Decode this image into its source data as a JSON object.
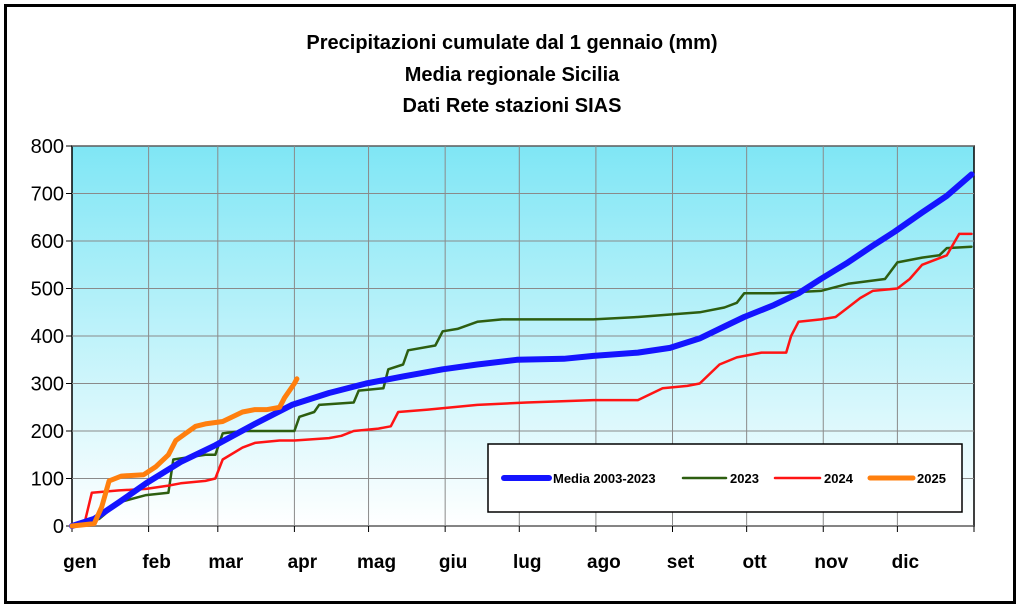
{
  "chart_data": {
    "type": "line",
    "title": [
      "Precipitazioni cumulate dal 1 gennaio (mm)",
      "Media regionale Sicilia",
      "Dati Rete stazioni SIAS"
    ],
    "xlabel": "",
    "ylabel": "",
    "ylim": [
      0,
      800
    ],
    "yticks": [
      "0",
      "100",
      "200",
      "300",
      "400",
      "500",
      "600",
      "700",
      "800"
    ],
    "xticks": [
      "gen",
      "feb",
      "mar",
      "apr",
      "mag",
      "giu",
      "lug",
      "ago",
      "set",
      "ott",
      "nov",
      "dic"
    ],
    "x_unit": "day of year (1 = 1 gennaio)",
    "grid": true,
    "legend_position": "bottom-right",
    "series": [
      {
        "name": "Media 2003-2023",
        "color": "#1414ff",
        "points": [
          [
            1,
            0
          ],
          [
            10,
            15
          ],
          [
            20,
            50
          ],
          [
            31,
            90
          ],
          [
            45,
            135
          ],
          [
            59,
            170
          ],
          [
            75,
            215
          ],
          [
            90,
            255
          ],
          [
            105,
            280
          ],
          [
            120,
            300
          ],
          [
            135,
            315
          ],
          [
            151,
            330
          ],
          [
            165,
            340
          ],
          [
            181,
            350
          ],
          [
            200,
            352
          ],
          [
            212,
            358
          ],
          [
            230,
            365
          ],
          [
            243,
            375
          ],
          [
            255,
            395
          ],
          [
            265,
            420
          ],
          [
            273,
            440
          ],
          [
            285,
            465
          ],
          [
            295,
            490
          ],
          [
            304,
            520
          ],
          [
            315,
            555
          ],
          [
            325,
            590
          ],
          [
            334,
            620
          ],
          [
            345,
            660
          ],
          [
            355,
            695
          ],
          [
            365,
            740
          ]
        ]
      },
      {
        "name": "2023",
        "color": "#2d5e10",
        "points": [
          [
            1,
            0
          ],
          [
            12,
            15
          ],
          [
            20,
            50
          ],
          [
            31,
            65
          ],
          [
            40,
            70
          ],
          [
            42,
            140
          ],
          [
            55,
            150
          ],
          [
            59,
            150
          ],
          [
            62,
            195
          ],
          [
            70,
            200
          ],
          [
            85,
            200
          ],
          [
            91,
            200
          ],
          [
            93,
            230
          ],
          [
            99,
            240
          ],
          [
            101,
            255
          ],
          [
            115,
            260
          ],
          [
            117,
            285
          ],
          [
            127,
            290
          ],
          [
            129,
            330
          ],
          [
            135,
            340
          ],
          [
            137,
            370
          ],
          [
            148,
            380
          ],
          [
            151,
            410
          ],
          [
            157,
            415
          ],
          [
            165,
            430
          ],
          [
            175,
            435
          ],
          [
            212,
            435
          ],
          [
            230,
            440
          ],
          [
            255,
            450
          ],
          [
            265,
            460
          ],
          [
            270,
            470
          ],
          [
            273,
            490
          ],
          [
            285,
            490
          ],
          [
            304,
            495
          ],
          [
            315,
            510
          ],
          [
            330,
            520
          ],
          [
            335,
            555
          ],
          [
            345,
            565
          ],
          [
            352,
            570
          ],
          [
            355,
            585
          ],
          [
            365,
            588
          ]
        ]
      },
      {
        "name": "2024",
        "color": "#ff1414",
        "points": [
          [
            1,
            0
          ],
          [
            6,
            5
          ],
          [
            9,
            70
          ],
          [
            20,
            75
          ],
          [
            31,
            78
          ],
          [
            40,
            85
          ],
          [
            45,
            90
          ],
          [
            55,
            95
          ],
          [
            59,
            100
          ],
          [
            62,
            140
          ],
          [
            70,
            165
          ],
          [
            75,
            175
          ],
          [
            85,
            180
          ],
          [
            91,
            180
          ],
          [
            105,
            185
          ],
          [
            110,
            190
          ],
          [
            115,
            200
          ],
          [
            125,
            205
          ],
          [
            130,
            210
          ],
          [
            133,
            240
          ],
          [
            145,
            245
          ],
          [
            165,
            255
          ],
          [
            185,
            260
          ],
          [
            212,
            265
          ],
          [
            230,
            265
          ],
          [
            240,
            290
          ],
          [
            250,
            295
          ],
          [
            255,
            300
          ],
          [
            263,
            340
          ],
          [
            270,
            355
          ],
          [
            280,
            365
          ],
          [
            290,
            365
          ],
          [
            292,
            400
          ],
          [
            295,
            430
          ],
          [
            304,
            435
          ],
          [
            310,
            440
          ],
          [
            315,
            460
          ],
          [
            320,
            480
          ],
          [
            325,
            495
          ],
          [
            335,
            500
          ],
          [
            340,
            520
          ],
          [
            345,
            550
          ],
          [
            355,
            570
          ],
          [
            360,
            615
          ],
          [
            365,
            615
          ]
        ]
      },
      {
        "name": "2025",
        "color": "#ff7f0e",
        "points": [
          [
            1,
            0
          ],
          [
            10,
            5
          ],
          [
            13,
            40
          ],
          [
            16,
            95
          ],
          [
            21,
            105
          ],
          [
            30,
            108
          ],
          [
            35,
            125
          ],
          [
            40,
            150
          ],
          [
            43,
            180
          ],
          [
            47,
            195
          ],
          [
            51,
            210
          ],
          [
            55,
            215
          ],
          [
            62,
            220
          ],
          [
            66,
            230
          ],
          [
            70,
            240
          ],
          [
            75,
            245
          ],
          [
            80,
            245
          ],
          [
            85,
            250
          ],
          [
            87,
            270
          ],
          [
            91,
            300
          ],
          [
            92,
            310
          ]
        ]
      }
    ]
  }
}
